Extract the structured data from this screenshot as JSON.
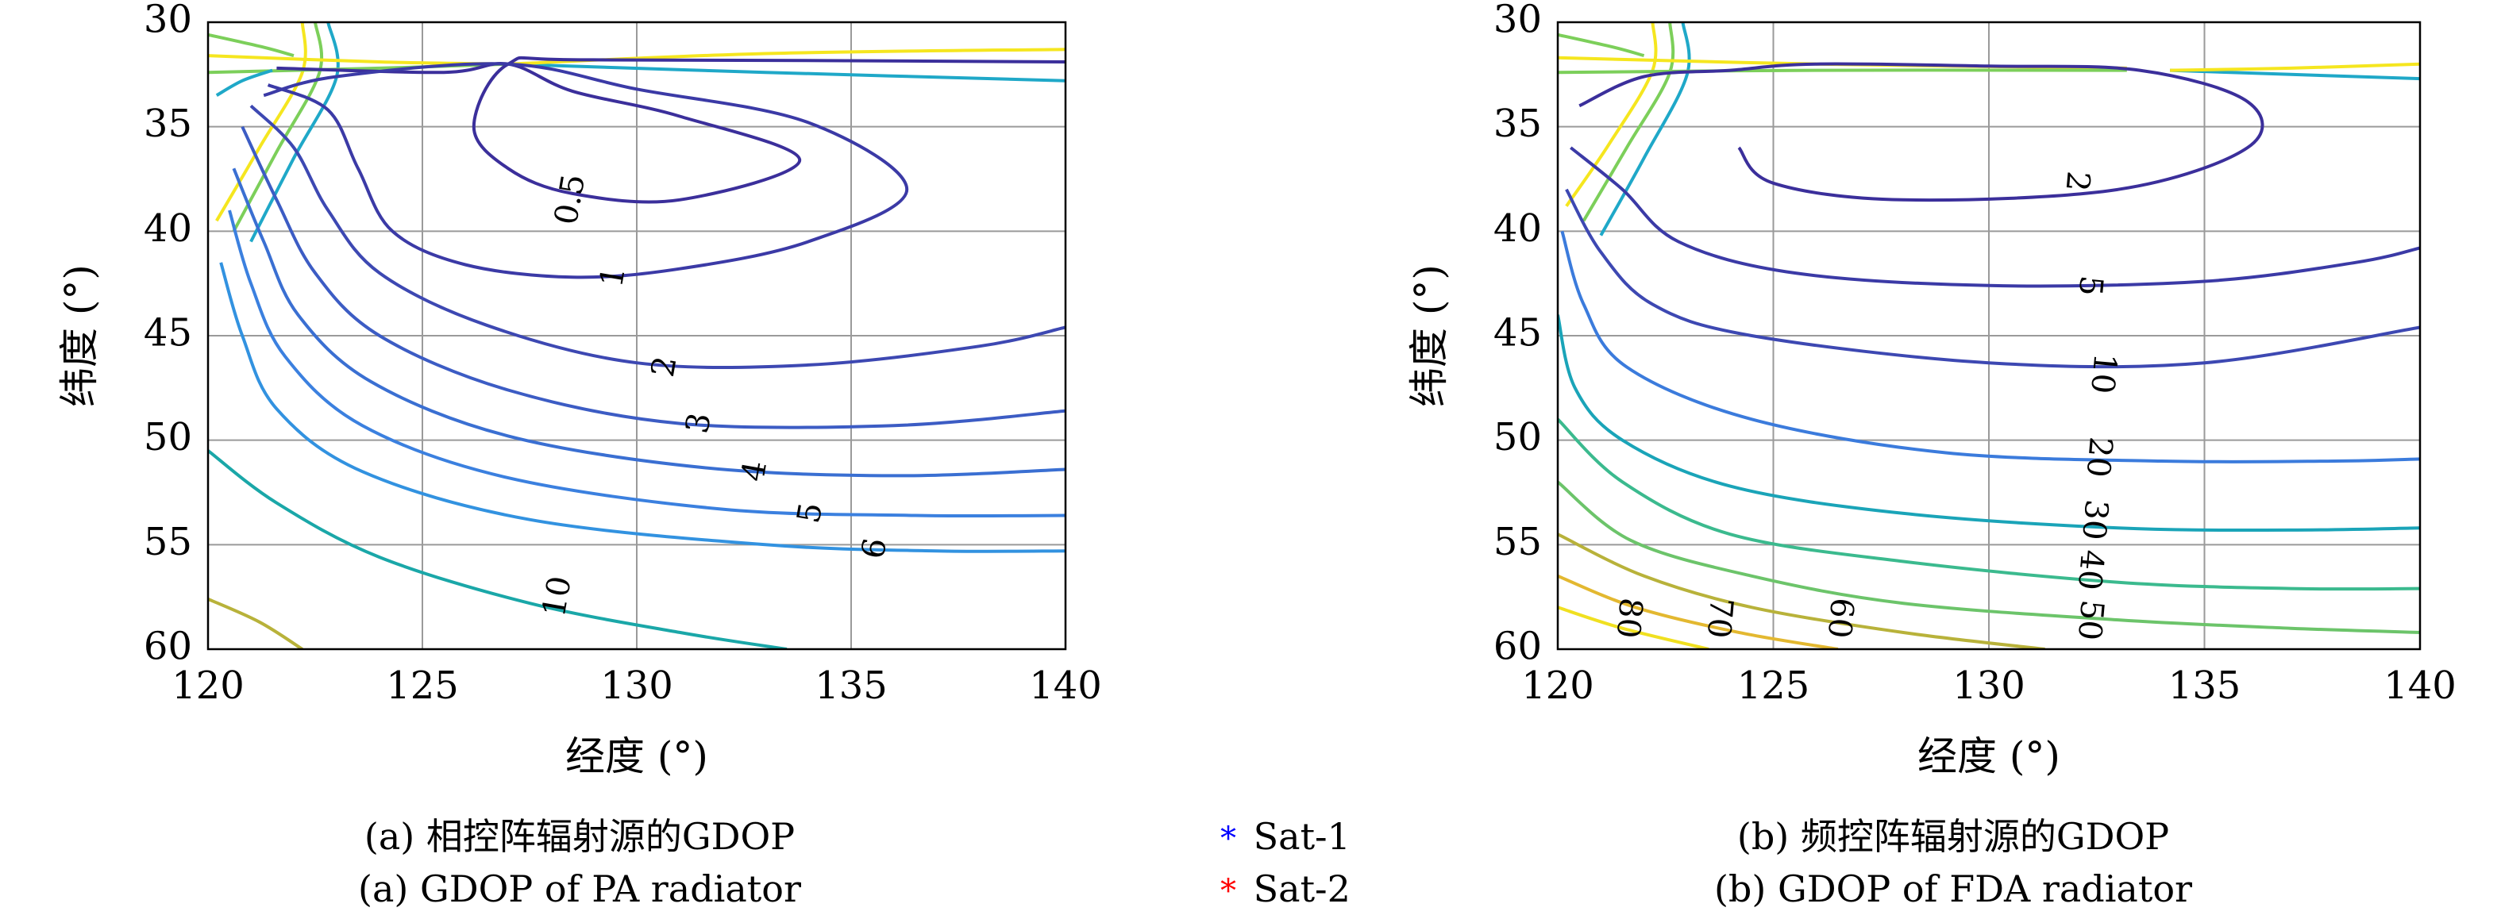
{
  "chart_data": [
    {
      "type": "contour",
      "panel": "a",
      "caption_cn": "(a) 相控阵辐射源的GDOP",
      "caption_en": "(a) GDOP of PA radiator",
      "xlabel": "经度 (°)",
      "ylabel": "纬度 (°)",
      "xlim": [
        120,
        140
      ],
      "ylim": [
        30,
        60
      ],
      "y_inverted": true,
      "grid": true,
      "xticks": [
        120,
        125,
        130,
        135,
        140
      ],
      "yticks": [
        30,
        35,
        40,
        45,
        50,
        55,
        60
      ],
      "contour_levels": [
        {
          "label": "0.5",
          "color": "#3b2f9b",
          "label_at": [
            128.5,
            38.5
          ]
        },
        {
          "label": "1",
          "color": "#3b3aa6",
          "label_at": [
            129.5,
            42.2
          ]
        },
        {
          "label": "2",
          "color": "#3d48b2",
          "label_at": [
            130.7,
            46.5
          ]
        },
        {
          "label": "3",
          "color": "#3c5cc4",
          "label_at": [
            131.5,
            49.2
          ]
        },
        {
          "label": "4",
          "color": "#3a6fd2",
          "label_at": [
            132.8,
            51.5
          ]
        },
        {
          "label": "5",
          "color": "#3b80df",
          "label_at": [
            134.1,
            53.5
          ]
        },
        {
          "label": "6",
          "color": "#3292e0",
          "label_at": [
            135.6,
            55.2
          ]
        },
        {
          "label": "10",
          "color": "#1aa7a8",
          "label_at": [
            128.2,
            57.5
          ]
        },
        {
          "label": "",
          "color": "#b8b23a",
          "label_at": null
        }
      ]
    },
    {
      "type": "contour",
      "panel": "b",
      "caption_cn": "(b) 频控阵辐射源的GDOP",
      "caption_en": "(b) GDOP of FDA radiator",
      "xlabel": "经度 (°)",
      "ylabel": "纬度 (°)",
      "xlim": [
        120,
        140
      ],
      "ylim": [
        30,
        60
      ],
      "y_inverted": true,
      "grid": true,
      "xticks": [
        120,
        125,
        130,
        135,
        140
      ],
      "yticks": [
        30,
        35,
        40,
        45,
        50,
        55,
        60
      ],
      "contour_levels": [
        {
          "label": "2",
          "color": "#3b2f9b",
          "label_at": [
            132.0,
            37.6
          ]
        },
        {
          "label": "5",
          "color": "#3b3aa6",
          "label_at": [
            132.3,
            42.6
          ]
        },
        {
          "label": "10",
          "color": "#3d48b2",
          "label_at": [
            132.6,
            46.8
          ]
        },
        {
          "label": "20",
          "color": "#3b7bdc",
          "label_at": [
            132.5,
            50.8
          ]
        },
        {
          "label": "30",
          "color": "#1aa4b8",
          "label_at": [
            132.4,
            53.8
          ]
        },
        {
          "label": "40",
          "color": "#3bba8e",
          "label_at": [
            132.3,
            56.2
          ]
        },
        {
          "label": "50",
          "color": "#6cc46a",
          "label_at": [
            132.3,
            58.6
          ]
        },
        {
          "label": "60",
          "color": "#b8b23a",
          "label_at": [
            126.5,
            58.5
          ]
        },
        {
          "label": "70",
          "color": "#e3b830",
          "label_at": [
            123.7,
            58.5
          ]
        },
        {
          "label": "80",
          "color": "#f0e020",
          "label_at": [
            121.6,
            58.5
          ]
        }
      ]
    }
  ],
  "legend": [
    {
      "label": "Sat-1",
      "color": "#0000ff",
      "icon": "asterisk-icon"
    },
    {
      "label": "Sat-2",
      "color": "#ff0000",
      "icon": "asterisk-icon"
    }
  ]
}
